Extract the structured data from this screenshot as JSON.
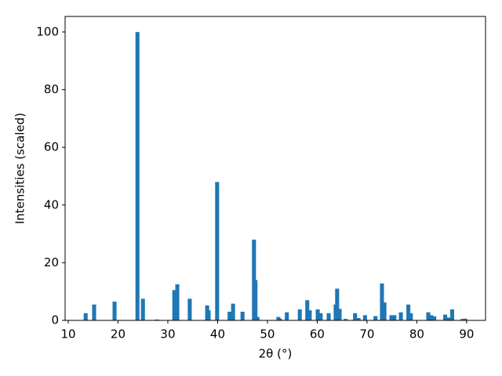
{
  "chart_data": {
    "type": "bar",
    "x_label": "2θ (°)",
    "y_label": "Intensities (scaled)",
    "x": [
      13.5,
      15.2,
      19.3,
      23.9,
      25.0,
      27.8,
      31.3,
      31.9,
      34.4,
      37.9,
      38.2,
      39.9,
      42.4,
      43.1,
      45.0,
      47.3,
      47.6,
      48.0,
      52.2,
      52.5,
      53.9,
      56.5,
      58.0,
      58.5,
      60.1,
      60.7,
      62.3,
      63.7,
      64.0,
      64.5,
      65.7,
      67.6,
      68.3,
      69.6,
      71.7,
      73.0,
      73.5,
      74.9,
      75.5,
      76.8,
      78.3,
      78.8,
      82.3,
      82.9,
      83.5,
      85.7,
      86.4,
      87.1,
      89.2,
      89.7
    ],
    "values": [
      2.5,
      5.5,
      6.5,
      100,
      7.5,
      0.3,
      10.5,
      12.5,
      7.5,
      5.2,
      3.5,
      48,
      3,
      5.8,
      3,
      28,
      14,
      1.2,
      1.2,
      0.6,
      2.8,
      3.8,
      7,
      3.5,
      3.8,
      2.5,
      2.5,
      5.5,
      11,
      4,
      0.5,
      2.5,
      0.8,
      1.8,
      1.5,
      12.8,
      6.2,
      1.8,
      1.8,
      2.8,
      5.5,
      2.5,
      2.8,
      1.8,
      1.4,
      2,
      1,
      3.8,
      0.5,
      0.6
    ],
    "color": "#1f77b4",
    "xlim": [
      9.37,
      93.8
    ],
    "ylim": [
      0,
      105.4
    ],
    "xticks": [
      10,
      20,
      30,
      40,
      50,
      60,
      70,
      80,
      90
    ],
    "yticks": [
      0,
      20,
      40,
      60,
      80,
      100
    ],
    "grid": false
  }
}
